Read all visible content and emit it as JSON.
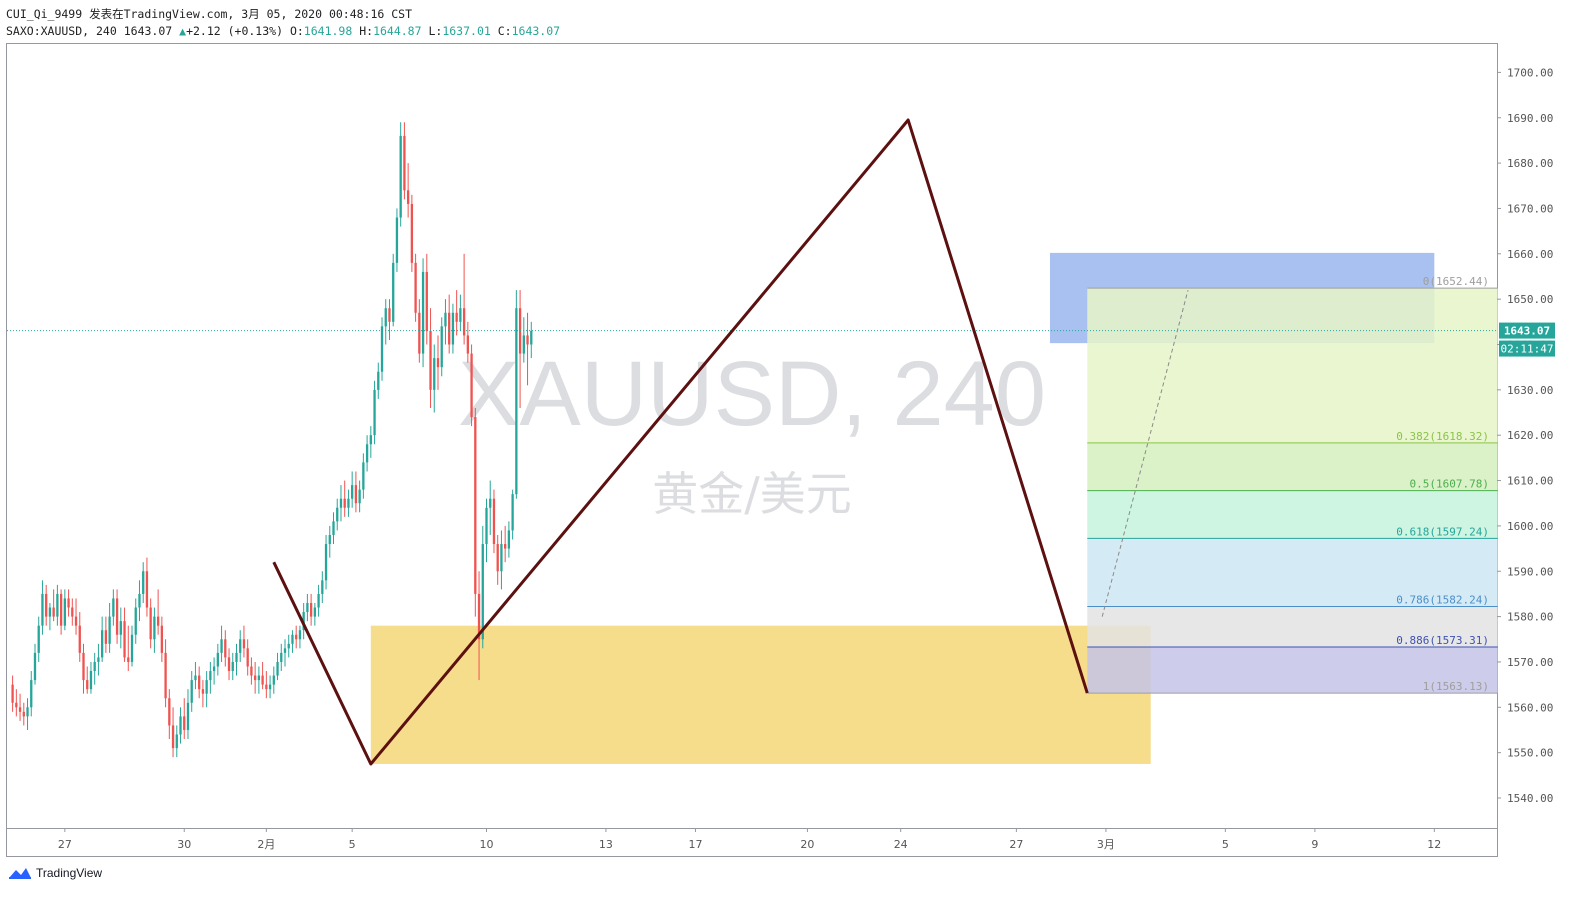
{
  "header": {
    "line1": "CUI_Qi_9499 发表在TradingView.com, 3月 05, 2020 00:48:16 CST",
    "symbol_interval": "SAXO:XAUUSD, 240",
    "last": "1643.07",
    "change": "+2.12 (+0.13%)",
    "o_label": "O:",
    "o": "1641.98",
    "h_label": "H:",
    "h": "1644.87",
    "l_label": "L:",
    "l": "1637.01",
    "c_label": "C:",
    "c": "1643.07"
  },
  "watermark": {
    "symbol": "XAUUSD, 240",
    "desc": "黄金/美元"
  },
  "footer": {
    "brand": "TradingView"
  },
  "colors": {
    "up": "#26a69a",
    "down": "#ef5350",
    "zigzag": "#5d1010",
    "yellow_box": "#f5d778",
    "blue_box": "#6e98e6",
    "price_line": "#26a69a",
    "marker": "#1a3a8f"
  },
  "chart_data": {
    "type": "candlestick",
    "symbol": "SAXO:XAUUSD",
    "interval": "240",
    "y_ticks": [
      "1540.00",
      "1550.00",
      "1560.00",
      "1570.00",
      "1580.00",
      "1590.00",
      "1600.00",
      "1610.00",
      "1620.00",
      "1630.00",
      "1640.00",
      "1650.00",
      "1660.00",
      "1670.00",
      "1680.00",
      "1690.00",
      "1700.00"
    ],
    "ylim": [
      1533,
      1706
    ],
    "x_ticks": [
      {
        "label": "27",
        "i": 14
      },
      {
        "label": "30",
        "i": 46
      },
      {
        "label": "2月",
        "i": 68
      },
      {
        "label": "5",
        "i": 91
      },
      {
        "label": "10",
        "i": 127
      },
      {
        "label": "13",
        "i": 159
      },
      {
        "label": "17",
        "i": 183
      },
      {
        "label": "20",
        "i": 213
      },
      {
        "label": "24",
        "i": 238
      },
      {
        "label": "27",
        "i": 269
      },
      {
        "label": "3月",
        "i": 293
      },
      {
        "label": "5",
        "i": 325
      },
      {
        "label": "9",
        "i": 349
      },
      {
        "label": "12",
        "i": 381
      }
    ],
    "x_range": [
      -1.5,
      397.8
    ],
    "current_price": 1643.07,
    "price_label": "1643.07",
    "countdown_label": "02:11:47",
    "zigzag": [
      {
        "i": 70,
        "price": 1592
      },
      {
        "i": 96,
        "price": 1547.5
      },
      {
        "i": 240,
        "price": 1689.5
      },
      {
        "i": 288,
        "price": 1563.13
      }
    ],
    "fibonacci": {
      "from_i": 288,
      "to_i": 398,
      "levels": [
        {
          "ratio": "0",
          "price": 1652.44,
          "label": "0(1652.44)",
          "line": "#9e9e9e",
          "fill": "#e6f4c8"
        },
        {
          "ratio": "0.382",
          "price": 1618.32,
          "label": "0.382(1618.32)",
          "line": "#8bc34a",
          "fill": "#d5efbd"
        },
        {
          "ratio": "0.5",
          "price": 1607.78,
          "label": "0.5(1607.78)",
          "line": "#4caf50",
          "fill": "#c6f2dd"
        },
        {
          "ratio": "0.618",
          "price": 1597.24,
          "label": "0.618(1597.24)",
          "line": "#26a69a",
          "fill": "#cde8f4"
        },
        {
          "ratio": "0.786",
          "price": 1582.24,
          "label": "0.786(1582.24)",
          "line": "#4d8fc9",
          "fill": "#e3e3e3"
        },
        {
          "ratio": "0.886",
          "price": 1573.31,
          "label": "0.886(1573.31)",
          "line": "#3f51b5",
          "fill": "#c4c4e8"
        },
        {
          "ratio": "1",
          "price": 1563.13,
          "label": "1(1563.13)",
          "line": "#9e9e9e",
          "fill": null
        }
      ]
    },
    "yellow_zone": {
      "i_start": 96,
      "i_end": 305,
      "price_top": 1578,
      "price_bottom": 1547.5
    },
    "blue_zone": {
      "i_start": 278,
      "i_end": 381,
      "price_top": 1660.2,
      "price_bottom": 1640.3
    },
    "trend_dash": [
      {
        "i": 292,
        "price": 1580
      },
      {
        "i": 315,
        "price": 1652
      }
    ],
    "candles": [
      [
        1565,
        1567,
        1559,
        1561
      ],
      [
        1561,
        1564,
        1558,
        1560
      ],
      [
        1560,
        1563,
        1557,
        1559
      ],
      [
        1559,
        1561,
        1556,
        1558
      ],
      [
        1558,
        1562,
        1555,
        1560
      ],
      [
        1560,
        1568,
        1558,
        1566
      ],
      [
        1566,
        1574,
        1565,
        1572
      ],
      [
        1572,
        1580,
        1570,
        1578
      ],
      [
        1578,
        1588,
        1576,
        1585
      ],
      [
        1585,
        1587,
        1578,
        1580
      ],
      [
        1580,
        1583,
        1577,
        1582
      ],
      [
        1582,
        1586,
        1579,
        1580
      ],
      [
        1580,
        1587,
        1578,
        1585
      ],
      [
        1585,
        1586,
        1576,
        1578
      ],
      [
        1578,
        1586,
        1577,
        1584
      ],
      [
        1584,
        1586,
        1580,
        1582
      ],
      [
        1582,
        1584,
        1578,
        1580
      ],
      [
        1580,
        1584,
        1576,
        1578
      ],
      [
        1578,
        1581,
        1570,
        1572
      ],
      [
        1572,
        1574,
        1563,
        1566
      ],
      [
        1566,
        1569,
        1563,
        1564
      ],
      [
        1564,
        1570,
        1563,
        1568
      ],
      [
        1568,
        1572,
        1565,
        1570
      ],
      [
        1570,
        1574,
        1567,
        1571
      ],
      [
        1571,
        1580,
        1570,
        1577
      ],
      [
        1577,
        1580,
        1572,
        1574
      ],
      [
        1574,
        1583,
        1572,
        1580
      ],
      [
        1580,
        1586,
        1578,
        1584
      ],
      [
        1584,
        1586,
        1574,
        1576
      ],
      [
        1576,
        1582,
        1573,
        1579
      ],
      [
        1579,
        1582,
        1570,
        1571
      ],
      [
        1571,
        1578,
        1568,
        1570
      ],
      [
        1570,
        1578,
        1569,
        1576
      ],
      [
        1576,
        1584,
        1574,
        1582
      ],
      [
        1582,
        1588,
        1579,
        1585
      ],
      [
        1585,
        1592,
        1583,
        1590
      ],
      [
        1590,
        1593,
        1580,
        1582
      ],
      [
        1582,
        1584,
        1573,
        1575
      ],
      [
        1575,
        1582,
        1572,
        1580
      ],
      [
        1580,
        1586,
        1576,
        1578
      ],
      [
        1578,
        1580,
        1570,
        1572
      ],
      [
        1572,
        1575,
        1560,
        1562
      ],
      [
        1562,
        1564,
        1553,
        1556
      ],
      [
        1556,
        1560,
        1549,
        1551
      ],
      [
        1551,
        1556,
        1549,
        1554
      ],
      [
        1554,
        1560,
        1552,
        1558
      ],
      [
        1558,
        1562,
        1553,
        1555
      ],
      [
        1555,
        1564,
        1553,
        1561
      ],
      [
        1561,
        1568,
        1559,
        1566
      ],
      [
        1566,
        1570,
        1564,
        1567
      ],
      [
        1567,
        1569,
        1562,
        1564
      ],
      [
        1564,
        1566,
        1560,
        1563
      ],
      [
        1563,
        1568,
        1560,
        1566
      ],
      [
        1566,
        1570,
        1563,
        1568
      ],
      [
        1568,
        1571,
        1565,
        1569
      ],
      [
        1569,
        1574,
        1567,
        1572
      ],
      [
        1572,
        1578,
        1570,
        1575
      ],
      [
        1575,
        1577,
        1569,
        1571
      ],
      [
        1571,
        1573,
        1566,
        1568
      ],
      [
        1568,
        1572,
        1566,
        1570
      ],
      [
        1570,
        1574,
        1567,
        1572
      ],
      [
        1572,
        1577,
        1570,
        1575
      ],
      [
        1575,
        1578,
        1571,
        1573
      ],
      [
        1573,
        1575,
        1567,
        1569
      ],
      [
        1569,
        1571,
        1565,
        1567
      ],
      [
        1567,
        1570,
        1563,
        1566
      ],
      [
        1566,
        1569,
        1563,
        1567
      ],
      [
        1567,
        1570,
        1564,
        1565
      ],
      [
        1565,
        1568,
        1562,
        1564
      ],
      [
        1564,
        1567,
        1562,
        1565
      ],
      [
        1565,
        1569,
        1563,
        1567
      ],
      [
        1567,
        1572,
        1566,
        1570
      ],
      [
        1570,
        1574,
        1568,
        1572
      ],
      [
        1572,
        1575,
        1569,
        1573
      ],
      [
        1573,
        1576,
        1571,
        1574
      ],
      [
        1574,
        1577,
        1572,
        1576
      ],
      [
        1576,
        1578,
        1573,
        1575
      ],
      [
        1575,
        1578,
        1573,
        1577
      ],
      [
        1577,
        1583,
        1575,
        1581
      ],
      [
        1581,
        1585,
        1579,
        1583
      ],
      [
        1583,
        1585,
        1578,
        1580
      ],
      [
        1580,
        1583,
        1578,
        1582
      ],
      [
        1582,
        1587,
        1580,
        1585
      ],
      [
        1585,
        1590,
        1583,
        1588
      ],
      [
        1588,
        1598,
        1586,
        1596
      ],
      [
        1596,
        1600,
        1593,
        1598
      ],
      [
        1598,
        1603,
        1596,
        1601
      ],
      [
        1601,
        1606,
        1599,
        1604
      ],
      [
        1604,
        1609,
        1601,
        1606
      ],
      [
        1606,
        1610,
        1602,
        1604
      ],
      [
        1604,
        1608,
        1602,
        1606
      ],
      [
        1606,
        1612,
        1604,
        1609
      ],
      [
        1609,
        1612,
        1603,
        1605
      ],
      [
        1605,
        1610,
        1603,
        1608
      ],
      [
        1608,
        1616,
        1606,
        1614
      ],
      [
        1614,
        1620,
        1612,
        1618
      ],
      [
        1618,
        1622,
        1615,
        1620
      ],
      [
        1620,
        1632,
        1618,
        1630
      ],
      [
        1630,
        1636,
        1628,
        1634
      ],
      [
        1634,
        1646,
        1632,
        1644
      ],
      [
        1644,
        1650,
        1640,
        1648
      ],
      [
        1648,
        1650,
        1641,
        1645
      ],
      [
        1645,
        1660,
        1644,
        1658
      ],
      [
        1658,
        1670,
        1656,
        1668
      ],
      [
        1668,
        1689,
        1666,
        1686
      ],
      [
        1686,
        1689,
        1672,
        1674
      ],
      [
        1674,
        1680,
        1668,
        1671
      ],
      [
        1671,
        1673,
        1656,
        1658
      ],
      [
        1658,
        1660,
        1645,
        1647
      ],
      [
        1647,
        1650,
        1636,
        1638
      ],
      [
        1638,
        1659,
        1635,
        1656
      ],
      [
        1656,
        1660,
        1640,
        1643
      ],
      [
        1643,
        1648,
        1626,
        1630
      ],
      [
        1630,
        1640,
        1625,
        1637
      ],
      [
        1637,
        1642,
        1630,
        1635
      ],
      [
        1635,
        1646,
        1633,
        1644
      ],
      [
        1644,
        1650,
        1640,
        1647
      ],
      [
        1647,
        1651,
        1638,
        1640
      ],
      [
        1640,
        1649,
        1638,
        1647
      ],
      [
        1647,
        1652,
        1642,
        1645
      ],
      [
        1645,
        1651,
        1643,
        1648
      ],
      [
        1648,
        1660,
        1640,
        1642
      ],
      [
        1642,
        1645,
        1636,
        1638
      ],
      [
        1638,
        1640,
        1622,
        1624
      ],
      [
        1624,
        1626,
        1580,
        1585
      ],
      [
        1585,
        1590,
        1566,
        1575
      ],
      [
        1575,
        1600,
        1573,
        1596
      ],
      [
        1596,
        1606,
        1592,
        1604
      ],
      [
        1604,
        1610,
        1598,
        1606
      ],
      [
        1606,
        1608,
        1594,
        1596
      ],
      [
        1596,
        1598,
        1587,
        1590
      ],
      [
        1590,
        1599,
        1586,
        1596
      ],
      [
        1596,
        1600,
        1592,
        1595
      ],
      [
        1595,
        1601,
        1593,
        1599
      ],
      [
        1599,
        1608,
        1597,
        1607
      ],
      [
        1607,
        1652,
        1606,
        1648
      ],
      [
        1648,
        1652,
        1626,
        1638
      ],
      [
        1638,
        1646,
        1636,
        1642
      ],
      [
        1642,
        1647,
        1631,
        1640
      ],
      [
        1640,
        1645,
        1637,
        1643
      ]
    ]
  }
}
